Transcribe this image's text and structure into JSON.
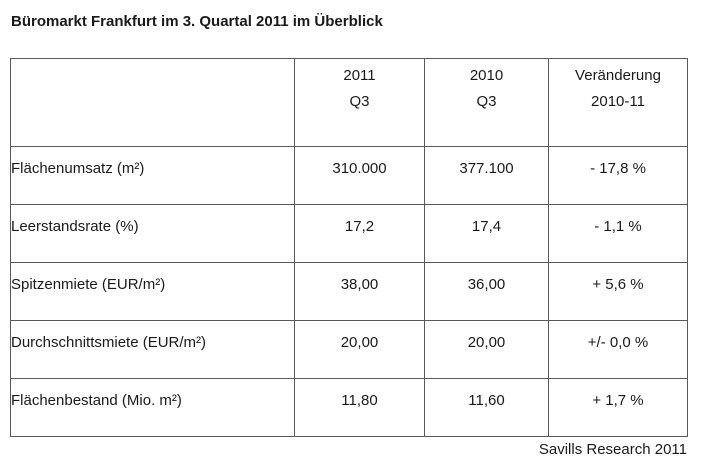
{
  "title": "Büromarkt Frankfurt im 3. Quartal 2011 im Überblick",
  "table": {
    "header_cols": [
      {
        "line1": "",
        "line2": ""
      },
      {
        "line1": "2011",
        "line2": "Q3"
      },
      {
        "line1": "2010",
        "line2": "Q3"
      },
      {
        "line1": "Veränderung",
        "line2": "2010-11"
      }
    ],
    "rows": [
      {
        "label": "Flächenumsatz (m²)",
        "q3_2011": "310.000",
        "q3_2010": "377.100",
        "change": "- 17,8 %"
      },
      {
        "label": "Leerstandsrate (%)",
        "q3_2011": "17,2",
        "q3_2010": "17,4",
        "change": "- 1,1 %"
      },
      {
        "label": "Spitzenmiete (EUR/m²)",
        "q3_2011": "38,00",
        "q3_2010": "36,00",
        "change": "+ 5,6 %"
      },
      {
        "label": "Durchschnittsmiete (EUR/m²)",
        "q3_2011": "20,00",
        "q3_2010": "20,00",
        "change": "+/- 0,0 %"
      },
      {
        "label": "Flächenbestand (Mio. m²)",
        "q3_2011": "11,80",
        "q3_2010": "11,60",
        "change": "+ 1,7 %"
      }
    ]
  },
  "source": "Savills Research 2011",
  "colors": {
    "background": "#ffffff",
    "text": "#1a1a1a",
    "border": "#595959"
  }
}
